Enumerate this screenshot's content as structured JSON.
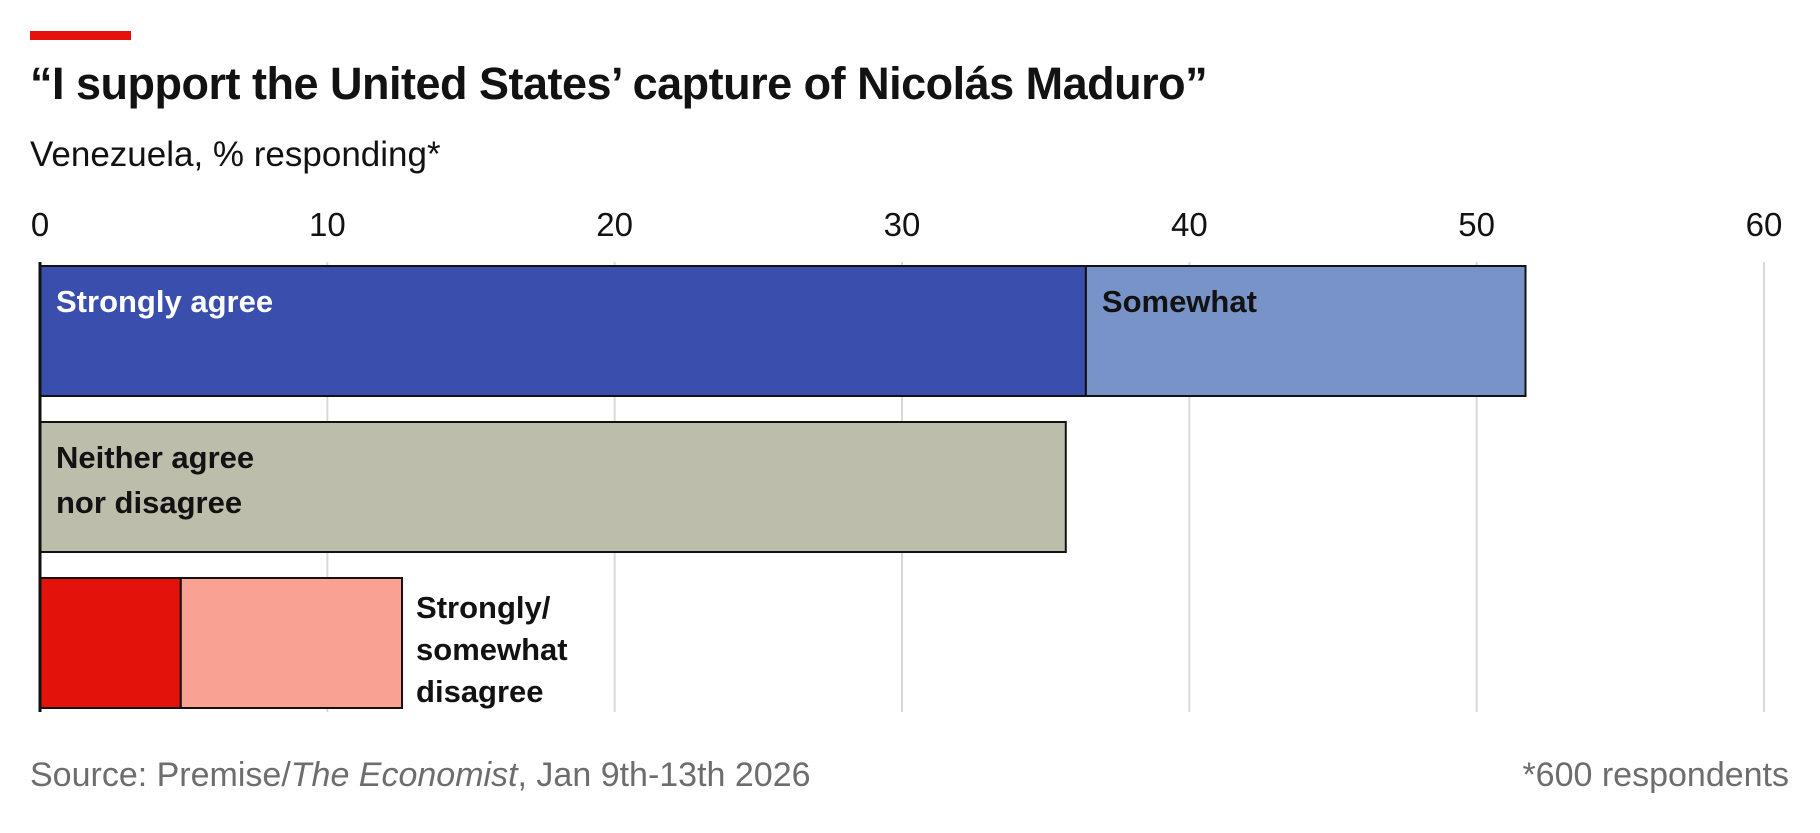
{
  "header": {
    "title": "“I support the United States’ capture of Nicolás Maduro”",
    "subtitle": "Venezuela, % responding*"
  },
  "footer": {
    "source_prefix": "Source: Premise/",
    "source_publication": "The Economist",
    "source_suffix": ", Jan 9th-13th 2026",
    "note": "*600 respondents"
  },
  "colors": {
    "accent": "#e3120b",
    "strongly_agree": "#3a4fad",
    "somewhat_agree": "#7893c7",
    "neither": "#bdbdab",
    "strongly_disagree": "#e3120b",
    "somewhat_disagree": "#f9a193",
    "gridline": "#d9d9d9",
    "bar_outline": "#121212"
  },
  "chart_data": {
    "type": "bar",
    "orientation": "horizontal",
    "stacked": true,
    "xlim": [
      0,
      60
    ],
    "x_ticks": [
      "0",
      "10",
      "20",
      "30",
      "40",
      "50",
      "60"
    ],
    "grid": true,
    "rows": [
      {
        "segments": [
          {
            "label": "Strongly agree",
            "value": 36.4,
            "color_key": "strongly_agree",
            "text_color": "#ffffff"
          },
          {
            "label": "Somewhat",
            "value": 15.3,
            "color_key": "somewhat_agree",
            "text_color": "#121212"
          }
        ]
      },
      {
        "segments": [
          {
            "label_lines": [
              "Neither agree",
              "nor disagree"
            ],
            "value": 35.7,
            "color_key": "neither",
            "text_color": "#121212"
          }
        ]
      },
      {
        "segments": [
          {
            "value": 4.9,
            "color_key": "strongly_disagree"
          },
          {
            "value": 7.7,
            "color_key": "somewhat_disagree"
          }
        ],
        "outside_label_lines": [
          "Strongly/",
          "somewhat",
          "disagree"
        ]
      }
    ]
  }
}
